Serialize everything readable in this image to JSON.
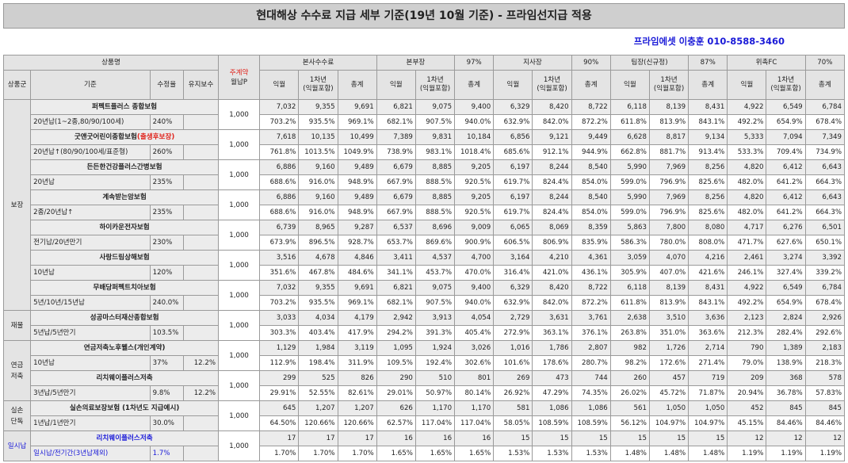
{
  "title": "현대해상 수수료 지급 세부 기준(19년 10월 기준) - 프라임선지급 적용",
  "contact": "프라임에셋 이충훈 010-8588-3460",
  "header": {
    "product_name": "상품명",
    "premium_label_1": "주계약",
    "premium_label_2": "월납P",
    "groups": [
      {
        "name": "본사수수료",
        "pct": ""
      },
      {
        "name": "본부장",
        "pct": "97%"
      },
      {
        "name": "지사장",
        "pct": "90%"
      },
      {
        "name": "팀장(신규정)",
        "pct": "87%"
      },
      {
        "name": "위촉FC",
        "pct": "70%"
      }
    ],
    "sub": {
      "category": "상품군",
      "criteria": "기준",
      "rate": "수정율",
      "maintain": "유지보수",
      "next_month": "익월",
      "year1_a": "1차년",
      "year1_b": "(익월포함)",
      "total": "총계"
    }
  },
  "categories": [
    "보장",
    "재물",
    "연금\n저축",
    "실손\n단독",
    "일시납"
  ],
  "products": [
    {
      "name": "퍼펙트플러스 종합보험",
      "name_red": "",
      "criteria": "20년납(1~2종,80/90/100세)",
      "rate": "240%",
      "maintain": "",
      "premium": "1,000",
      "amounts": [
        "7,032",
        "9,355",
        "9,691",
        "6,821",
        "9,075",
        "9,400",
        "6,329",
        "8,420",
        "8,722",
        "6,118",
        "8,139",
        "8,431",
        "4,922",
        "6,549",
        "6,784"
      ],
      "pcts": [
        "703.2%",
        "935.5%",
        "969.1%",
        "682.1%",
        "907.5%",
        "940.0%",
        "632.9%",
        "842.0%",
        "872.2%",
        "611.8%",
        "813.9%",
        "843.1%",
        "492.2%",
        "654.9%",
        "678.4%"
      ]
    },
    {
      "name": "굿앤굿어린이종합보험",
      "name_red": "(출생후보장)",
      "criteria": "20년납↑(80/90/100세/표준형)",
      "rate": "260%",
      "maintain": "",
      "premium": "1,000",
      "amounts": [
        "7,618",
        "10,135",
        "10,499",
        "7,389",
        "9,831",
        "10,184",
        "6,856",
        "9,121",
        "9,449",
        "6,628",
        "8,817",
        "9,134",
        "5,333",
        "7,094",
        "7,349"
      ],
      "pcts": [
        "761.8%",
        "1013.5%",
        "1049.9%",
        "738.9%",
        "983.1%",
        "1018.4%",
        "685.6%",
        "912.1%",
        "944.9%",
        "662.8%",
        "881.7%",
        "913.4%",
        "533.3%",
        "709.4%",
        "734.9%"
      ]
    },
    {
      "name": "든든한건강플러스간병보험",
      "name_red": "",
      "criteria": "20년납",
      "rate": "235%",
      "maintain": "",
      "premium": "1,000",
      "amounts": [
        "6,886",
        "9,160",
        "9,489",
        "6,679",
        "8,885",
        "9,205",
        "6,197",
        "8,244",
        "8,540",
        "5,990",
        "7,969",
        "8,256",
        "4,820",
        "6,412",
        "6,643"
      ],
      "pcts": [
        "688.6%",
        "916.0%",
        "948.9%",
        "667.9%",
        "888.5%",
        "920.5%",
        "619.7%",
        "824.4%",
        "854.0%",
        "599.0%",
        "796.9%",
        "825.6%",
        "482.0%",
        "641.2%",
        "664.3%"
      ]
    },
    {
      "name": "계속받는암보험",
      "name_red": "",
      "criteria": "2종/20년납↑",
      "rate": "235%",
      "maintain": "",
      "premium": "1,000",
      "amounts": [
        "6,886",
        "9,160",
        "9,489",
        "6,679",
        "8,885",
        "9,205",
        "6,197",
        "8,244",
        "8,540",
        "5,990",
        "7,969",
        "8,256",
        "4,820",
        "6,412",
        "6,643"
      ],
      "pcts": [
        "688.6%",
        "916.0%",
        "948.9%",
        "667.9%",
        "888.5%",
        "920.5%",
        "619.7%",
        "824.4%",
        "854.0%",
        "599.0%",
        "796.9%",
        "825.6%",
        "482.0%",
        "641.2%",
        "664.3%"
      ]
    },
    {
      "name": "하이카운전자보험",
      "name_red": "",
      "criteria": "전기납/20년만기",
      "rate": "230%",
      "maintain": "",
      "premium": "1,000",
      "amounts": [
        "6,739",
        "8,965",
        "9,287",
        "6,537",
        "8,696",
        "9,009",
        "6,065",
        "8,069",
        "8,359",
        "5,863",
        "7,800",
        "8,080",
        "4,717",
        "6,276",
        "6,501"
      ],
      "pcts": [
        "673.9%",
        "896.5%",
        "928.7%",
        "653.7%",
        "869.6%",
        "900.9%",
        "606.5%",
        "806.9%",
        "835.9%",
        "586.3%",
        "780.0%",
        "808.0%",
        "471.7%",
        "627.6%",
        "650.1%"
      ]
    },
    {
      "name": "사랑드림상해보험",
      "name_red": "",
      "criteria": "10년납",
      "rate": "120%",
      "maintain": "",
      "premium": "1,000",
      "amounts": [
        "3,516",
        "4,678",
        "4,846",
        "3,411",
        "4,537",
        "4,700",
        "3,164",
        "4,210",
        "4,361",
        "3,059",
        "4,070",
        "4,216",
        "2,461",
        "3,274",
        "3,392"
      ],
      "pcts": [
        "351.6%",
        "467.8%",
        "484.6%",
        "341.1%",
        "453.7%",
        "470.0%",
        "316.4%",
        "421.0%",
        "436.1%",
        "305.9%",
        "407.0%",
        "421.6%",
        "246.1%",
        "327.4%",
        "339.2%"
      ]
    },
    {
      "name": "무배당퍼펙트치아보험",
      "name_red": "",
      "criteria": "5년/10년/15년납",
      "rate": "240.0%",
      "maintain": "",
      "premium": "1,000",
      "amounts": [
        "7,032",
        "9,355",
        "9,691",
        "6,821",
        "9,075",
        "9,400",
        "6,329",
        "8,420",
        "8,722",
        "6,118",
        "8,139",
        "8,431",
        "4,922",
        "6,549",
        "6,784"
      ],
      "pcts": [
        "703.2%",
        "935.5%",
        "969.1%",
        "682.1%",
        "907.5%",
        "940.0%",
        "632.9%",
        "842.0%",
        "872.2%",
        "611.8%",
        "813.9%",
        "843.1%",
        "492.2%",
        "654.9%",
        "678.4%"
      ]
    },
    {
      "name": "성공마스터재산종합보험",
      "name_red": "",
      "criteria": "5년납/5년만기",
      "rate": "103.5%",
      "maintain": "",
      "premium": "1,000",
      "amounts": [
        "3,033",
        "4,034",
        "4,179",
        "2,942",
        "3,913",
        "4,054",
        "2,729",
        "3,631",
        "3,761",
        "2,638",
        "3,510",
        "3,636",
        "2,123",
        "2,824",
        "2,926"
      ],
      "pcts": [
        "303.3%",
        "403.4%",
        "417.9%",
        "294.2%",
        "391.3%",
        "405.4%",
        "272.9%",
        "363.1%",
        "376.1%",
        "263.8%",
        "351.0%",
        "363.6%",
        "212.3%",
        "282.4%",
        "292.6%"
      ]
    },
    {
      "name": "연금저축노후웰스(개인계약)",
      "name_red": "",
      "criteria": "10년납",
      "rate": "37%",
      "maintain": "12.2%",
      "premium": "1,000",
      "amounts": [
        "1,129",
        "1,984",
        "3,119",
        "1,095",
        "1,924",
        "3,026",
        "1,016",
        "1,786",
        "2,807",
        "982",
        "1,726",
        "2,714",
        "790",
        "1,389",
        "2,183"
      ],
      "pcts": [
        "112.9%",
        "198.4%",
        "311.9%",
        "109.5%",
        "192.4%",
        "302.6%",
        "101.6%",
        "178.6%",
        "280.7%",
        "98.2%",
        "172.6%",
        "271.4%",
        "79.0%",
        "138.9%",
        "218.3%"
      ]
    },
    {
      "name": "리치웨이플러스저축",
      "name_red": "",
      "criteria": "3년납/5년만기",
      "rate": "9.8%",
      "maintain": "12.2%",
      "premium": "1,000",
      "amounts": [
        "299",
        "525",
        "826",
        "290",
        "510",
        "801",
        "269",
        "473",
        "744",
        "260",
        "457",
        "719",
        "209",
        "368",
        "578"
      ],
      "pcts": [
        "29.91%",
        "52.55%",
        "82.61%",
        "29.01%",
        "50.97%",
        "80.14%",
        "26.92%",
        "47.29%",
        "74.35%",
        "26.02%",
        "45.72%",
        "71.87%",
        "20.94%",
        "36.78%",
        "57.83%"
      ]
    },
    {
      "name": "실손의료보장보험 (1차년도 지급예시)",
      "name_red": "",
      "criteria": "1년납/1년만기",
      "rate": "30.0%",
      "maintain": "",
      "premium": "1,000",
      "amounts": [
        "645",
        "1,207",
        "1,207",
        "626",
        "1,170",
        "1,170",
        "581",
        "1,086",
        "1,086",
        "561",
        "1,050",
        "1,050",
        "452",
        "845",
        "845"
      ],
      "pcts": [
        "64.50%",
        "120.66%",
        "120.66%",
        "62.57%",
        "117.04%",
        "117.04%",
        "58.05%",
        "108.59%",
        "108.59%",
        "56.12%",
        "104.97%",
        "104.97%",
        "45.15%",
        "84.46%",
        "84.46%"
      ]
    },
    {
      "name": "리치웨이플러스저축",
      "name_red": "",
      "criteria": "일시납/전기간(3년납제외)",
      "rate": "1.7%",
      "maintain": "",
      "premium": "1,000",
      "amounts": [
        "17",
        "17",
        "17",
        "16",
        "16",
        "16",
        "15",
        "15",
        "15",
        "15",
        "15",
        "15",
        "12",
        "12",
        "12"
      ],
      "pcts": [
        "1.70%",
        "1.70%",
        "1.70%",
        "1.65%",
        "1.65%",
        "1.65%",
        "1.53%",
        "1.53%",
        "1.53%",
        "1.48%",
        "1.48%",
        "1.48%",
        "1.19%",
        "1.19%",
        "1.19%"
      ]
    }
  ]
}
